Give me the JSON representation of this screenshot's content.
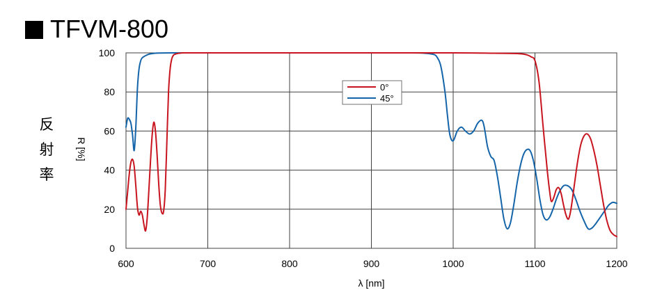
{
  "header": {
    "title_symbol": "■",
    "title": "TFVM-800"
  },
  "side_label": [
    "反",
    "射",
    "率"
  ],
  "chart_data": {
    "type": "line",
    "title": "TFVM-800",
    "xlabel": "λ [nm]",
    "ylabel": "R [%]",
    "xlim": [
      600,
      1200
    ],
    "ylim": [
      0,
      100
    ],
    "xticks": [
      600,
      700,
      800,
      900,
      1000,
      1100,
      1200
    ],
    "yticks": [
      0,
      20,
      40,
      60,
      80,
      100
    ],
    "grid": true,
    "legend_position": "top-center",
    "series": [
      {
        "name": "0°",
        "color": "#c8141e",
        "x": [
          600,
          602,
          604,
          606,
          608,
          610,
          612,
          614,
          616,
          618,
          620,
          622,
          624,
          626,
          628,
          630,
          632,
          634,
          636,
          638,
          640,
          642,
          644,
          646,
          648,
          650,
          652,
          654,
          656,
          658,
          660,
          662,
          665,
          670,
          680,
          700,
          800,
          900,
          1000,
          1050,
          1080,
          1090,
          1095,
          1100,
          1105,
          1110,
          1115,
          1118,
          1120,
          1123,
          1126,
          1129,
          1132,
          1135,
          1138,
          1141,
          1144,
          1148,
          1152,
          1156,
          1160,
          1164,
          1168,
          1172,
          1176,
          1180,
          1184,
          1188,
          1192,
          1196,
          1200
        ],
        "y": [
          20,
          29,
          38,
          44,
          45.5,
          42,
          32,
          21,
          17,
          19,
          17,
          12,
          9,
          16,
          30,
          45,
          58,
          64.5,
          60,
          48,
          33,
          22,
          18,
          19,
          30,
          55,
          80,
          92,
          97,
          98.8,
          99.3,
          99.6,
          99.8,
          100,
          100,
          100,
          100,
          100,
          100,
          99.8,
          99.6,
          99,
          98,
          96,
          85,
          62,
          40,
          29,
          24,
          26,
          30,
          31,
          28,
          22,
          17,
          15,
          20,
          32,
          44,
          53,
          57.5,
          58.5,
          56,
          50,
          42,
          32,
          22,
          14,
          9,
          7,
          6
        ]
      },
      {
        "name": "45°",
        "color": "#1464aa",
        "x": [
          600,
          602,
          604,
          606,
          608,
          610,
          612,
          614,
          616,
          618,
          620,
          625,
          630,
          640,
          660,
          700,
          800,
          900,
          950,
          965,
          975,
          980,
          985,
          990,
          993,
          996,
          1000,
          1005,
          1010,
          1015,
          1020,
          1025,
          1030,
          1035,
          1038,
          1042,
          1046,
          1050,
          1054,
          1058,
          1062,
          1066,
          1070,
          1074,
          1078,
          1082,
          1086,
          1090,
          1094,
          1098,
          1102,
          1106,
          1110,
          1114,
          1118,
          1122,
          1126,
          1130,
          1135,
          1140,
          1145,
          1150,
          1155,
          1160,
          1165,
          1170,
          1175,
          1180,
          1185,
          1190,
          1195,
          1200
        ],
        "y": [
          62,
          66.5,
          66,
          64,
          58,
          50,
          62,
          82,
          92,
          96,
          97.5,
          98.8,
          99.5,
          99.9,
          100,
          100,
          100,
          100,
          100,
          99.8,
          99.3,
          98,
          93,
          80,
          68,
          58,
          55,
          60,
          62,
          60,
          58.5,
          60,
          64,
          65.5,
          62,
          52,
          47,
          45,
          37,
          26,
          15,
          10,
          13,
          22,
          33,
          42,
          48,
          50.5,
          50,
          45,
          36,
          25,
          17,
          14.5,
          16,
          20,
          25,
          29,
          32,
          32,
          30,
          25,
          19,
          14,
          10,
          10.5,
          13,
          16,
          19,
          22,
          23.5,
          23
        ]
      }
    ]
  }
}
